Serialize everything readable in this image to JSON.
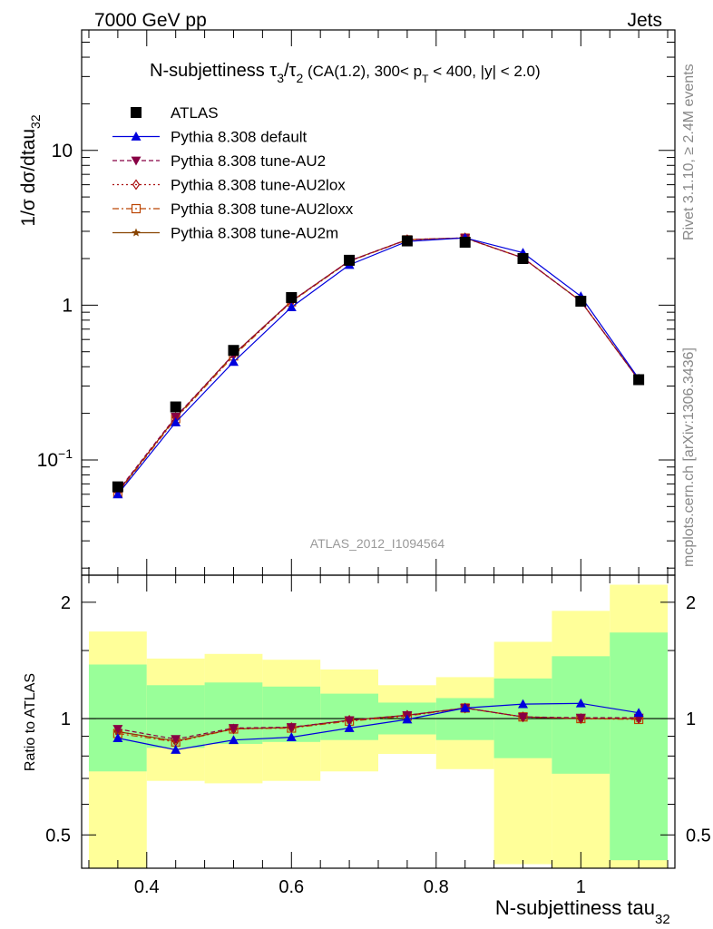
{
  "header": {
    "left": "7000 GeV pp",
    "right": "Jets"
  },
  "side_labels": {
    "rivet": "Rivet 3.1.10, ≥ 2.4M events",
    "mcplots": "mcplots.cern.ch [arXiv:1306.3436]"
  },
  "plot_title": {
    "main": "N-subjettiness τ",
    "sub3": "3",
    "slash": "/τ",
    "sub2": "2",
    "cuts": " (CA(1.2), 300< p",
    "subT": "T",
    "cuts2": " < 400, |y| < 2.0)"
  },
  "watermark": "ATLAS_2012_I1094564",
  "colors": {
    "data": "#000000",
    "default": "#0000dd",
    "au2": "#880044",
    "au2lox": "#aa1111",
    "au2loxx": "#bb4400",
    "au2m": "#884400",
    "band_inner": "#99ff99",
    "band_outer": "#ffff99"
  },
  "chart_data": [
    {
      "type": "scatter",
      "title": "",
      "ylabel": "1/σ dσ/dtau",
      "ylabel_sub": "32",
      "yscale": "log",
      "ylim": [
        0.018,
        60
      ],
      "xlim": [
        0.31,
        1.13
      ],
      "x": [
        0.36,
        0.44,
        0.52,
        0.6,
        0.68,
        0.76,
        0.84,
        0.92,
        1.0,
        1.08
      ],
      "y_ticks": [
        {
          "value": 0.1,
          "base": "10",
          "exp": "−1"
        },
        {
          "value": 1,
          "base": "1",
          "exp": ""
        },
        {
          "value": 10,
          "base": "10",
          "exp": ""
        }
      ],
      "series": [
        {
          "name": "ATLAS",
          "key": "data",
          "marker": "square",
          "line": "none",
          "values": [
            0.067,
            0.22,
            0.51,
            1.12,
            1.95,
            2.6,
            2.55,
            2.0,
            1.06,
            0.33
          ]
        },
        {
          "name": "Pythia 8.308 default",
          "key": "default",
          "marker": "triangle",
          "line": "solid",
          "values": [
            0.06,
            0.175,
            0.43,
            0.97,
            1.82,
            2.58,
            2.72,
            2.18,
            1.14,
            0.335
          ]
        },
        {
          "name": "Pythia 8.308 tune-AU2",
          "key": "au2",
          "marker": "triangle-down",
          "line": "dash",
          "values": [
            0.063,
            0.19,
            0.48,
            1.06,
            1.93,
            2.65,
            2.72,
            2.02,
            1.06,
            0.33
          ]
        },
        {
          "name": "Pythia 8.308 tune-AU2lox",
          "key": "au2lox",
          "marker": "diamond",
          "line": "dot",
          "values": [
            0.062,
            0.188,
            0.48,
            1.06,
            1.93,
            2.65,
            2.72,
            2.02,
            1.06,
            0.33
          ]
        },
        {
          "name": "Pythia 8.308 tune-AU2loxx",
          "key": "au2loxx",
          "marker": "square-open",
          "line": "dashdot",
          "values": [
            0.061,
            0.185,
            0.47,
            1.05,
            1.92,
            2.64,
            2.71,
            2.02,
            1.06,
            0.33
          ]
        },
        {
          "name": "Pythia 8.308 tune-AU2m",
          "key": "au2m",
          "marker": "star",
          "line": "solid",
          "values": [
            0.062,
            0.188,
            0.48,
            1.06,
            1.93,
            2.65,
            2.72,
            2.02,
            1.06,
            0.33
          ]
        }
      ]
    },
    {
      "type": "line",
      "title": "",
      "xlabel": "N-subjettiness tau",
      "xlabel_sub": "32",
      "ylabel": "Ratio to ATLAS",
      "yscale": "log",
      "ylim": [
        0.41,
        2.35
      ],
      "xlim": [
        0.31,
        1.13
      ],
      "x_ticks": [
        0.4,
        0.6,
        0.8,
        1.0
      ],
      "x_tick_labels": [
        "0.4",
        "0.6",
        "0.8",
        "1"
      ],
      "y_ticks": [
        0.5,
        1,
        2
      ],
      "y_tick_labels": [
        "0.5",
        "1",
        "2"
      ],
      "bins": [
        [
          0.32,
          0.4
        ],
        [
          0.4,
          0.48
        ],
        [
          0.48,
          0.56
        ],
        [
          0.56,
          0.64
        ],
        [
          0.64,
          0.72
        ],
        [
          0.72,
          0.8
        ],
        [
          0.8,
          0.88
        ],
        [
          0.88,
          0.96
        ],
        [
          0.96,
          1.04
        ],
        [
          1.04,
          1.12
        ]
      ],
      "band_inner": [
        [
          0.73,
          1.38
        ],
        [
          0.84,
          1.22
        ],
        [
          0.86,
          1.24
        ],
        [
          0.87,
          1.21
        ],
        [
          0.88,
          1.16
        ],
        [
          0.91,
          1.1
        ],
        [
          0.88,
          1.13
        ],
        [
          0.79,
          1.27
        ],
        [
          0.72,
          1.45
        ],
        [
          0.43,
          1.67
        ]
      ],
      "band_outer": [
        [
          0.3,
          1.68
        ],
        [
          0.69,
          1.43
        ],
        [
          0.68,
          1.47
        ],
        [
          0.69,
          1.42
        ],
        [
          0.73,
          1.34
        ],
        [
          0.81,
          1.22
        ],
        [
          0.74,
          1.28
        ],
        [
          0.42,
          1.58
        ],
        [
          0.4,
          1.9
        ],
        [
          0.32,
          2.22
        ]
      ],
      "series": [
        {
          "name": "Pythia 8.308 default",
          "key": "default",
          "marker": "triangle",
          "line": "solid",
          "values": [
            0.89,
            0.83,
            0.88,
            0.895,
            0.945,
            0.995,
            1.065,
            1.09,
            1.095,
            1.035
          ]
        },
        {
          "name": "Pythia 8.308 tune-AU2",
          "key": "au2",
          "marker": "triangle-down",
          "line": "dash",
          "values": [
            0.94,
            0.885,
            0.945,
            0.95,
            0.99,
            1.02,
            1.065,
            1.01,
            1.005,
            1.005
          ]
        },
        {
          "name": "Pythia 8.308 tune-AU2lox",
          "key": "au2lox",
          "marker": "diamond",
          "line": "dot",
          "values": [
            0.925,
            0.875,
            0.94,
            0.948,
            0.99,
            1.02,
            1.065,
            1.01,
            1.0,
            1.0
          ]
        },
        {
          "name": "Pythia 8.308 tune-AU2loxx",
          "key": "au2loxx",
          "marker": "square-open",
          "line": "dashdot",
          "values": [
            0.915,
            0.87,
            0.94,
            0.945,
            0.985,
            1.015,
            1.065,
            1.01,
            1.0,
            0.995
          ]
        },
        {
          "name": "Pythia 8.308 tune-AU2m",
          "key": "au2m",
          "marker": "star",
          "line": "solid",
          "values": [
            0.925,
            0.875,
            0.94,
            0.948,
            0.99,
            1.02,
            1.065,
            1.01,
            1.0,
            1.0
          ]
        }
      ]
    }
  ]
}
